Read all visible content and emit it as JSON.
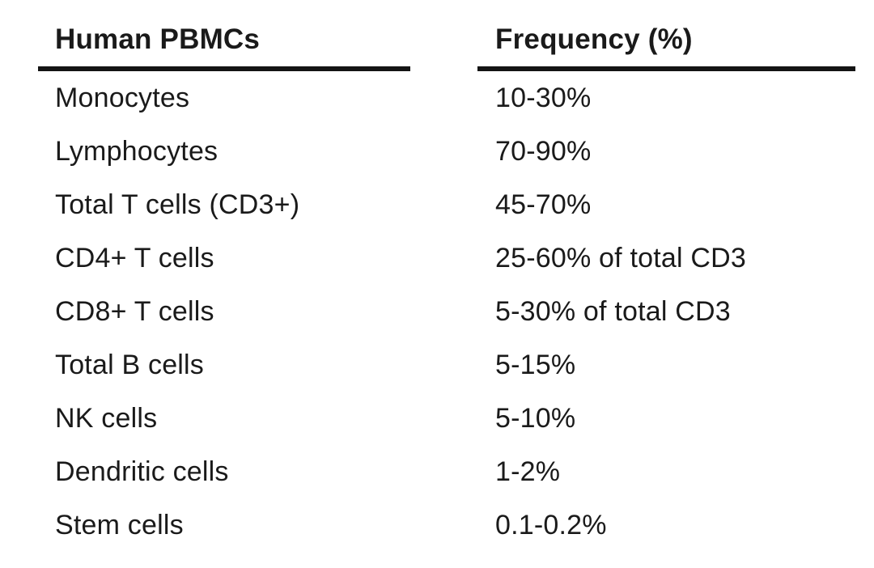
{
  "table": {
    "headers": {
      "cell_type": "Human PBMCs",
      "frequency": "Frequency (%)"
    },
    "rows": [
      {
        "label": "Monocytes",
        "frequency": "10-30%"
      },
      {
        "label": "Lymphocytes",
        "frequency": "70-90%"
      },
      {
        "label": "Total T cells (CD3+)",
        "frequency": "45-70%"
      },
      {
        "label": "CD4+ T cells",
        "frequency": "25-60% of total CD3"
      },
      {
        "label": "CD8+ T cells",
        "frequency": "5-30% of total CD3"
      },
      {
        "label": "Total B cells",
        "frequency": "5-15%"
      },
      {
        "label": "NK cells",
        "frequency": "5-10%"
      },
      {
        "label": "Dendritic cells",
        "frequency": "1-2%"
      },
      {
        "label": "Stem cells",
        "frequency": "0.1-0.2%"
      }
    ]
  },
  "colors": {
    "text": "#1a1a1a",
    "rule": "#141414",
    "background": "#ffffff"
  },
  "chart_data": {
    "type": "table",
    "title": "Human PBMCs frequency table",
    "columns": [
      "Human PBMCs",
      "Frequency (%)"
    ],
    "rows": [
      [
        "Monocytes",
        "10-30%"
      ],
      [
        "Lymphocytes",
        "70-90%"
      ],
      [
        "Total T cells (CD3+)",
        "45-70%"
      ],
      [
        "CD4+ T cells",
        "25-60% of total CD3"
      ],
      [
        "CD8+ T cells",
        "5-30% of total CD3"
      ],
      [
        "Total B cells",
        "5-15%"
      ],
      [
        "NK cells",
        "5-10%"
      ],
      [
        "Dendritic cells",
        "1-2%"
      ],
      [
        "Stem cells",
        "0.1-0.2%"
      ]
    ]
  }
}
